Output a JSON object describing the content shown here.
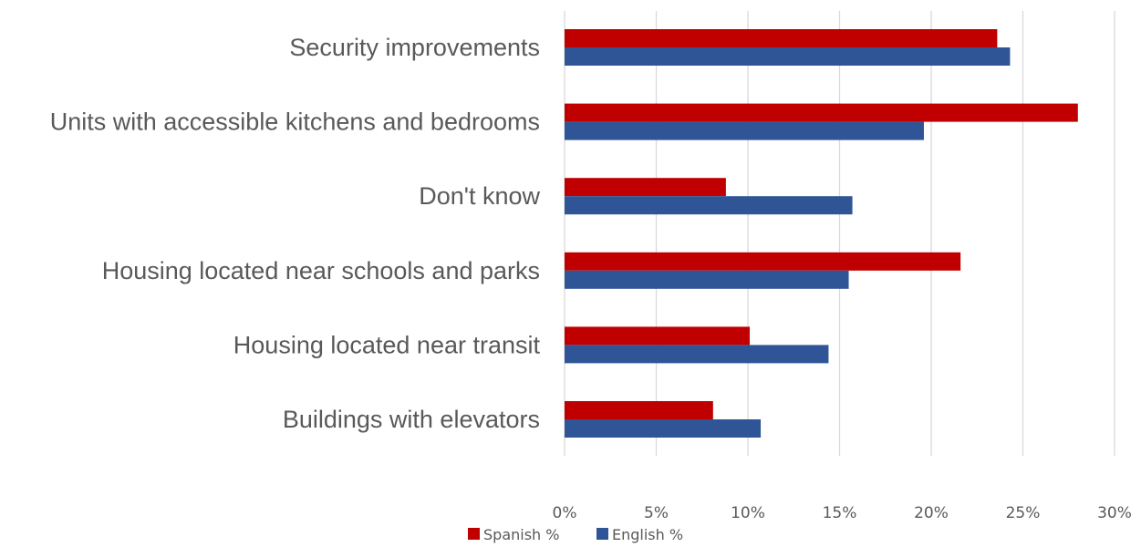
{
  "chart_data": {
    "type": "bar",
    "orientation": "horizontal",
    "categories": [
      "Security improvements",
      "Units with accessible kitchens and bedrooms",
      "Don't know",
      "Housing located near schools and parks",
      "Housing located near transit",
      "Buildings with elevators"
    ],
    "series": [
      {
        "name": "Spanish %",
        "color": "#c00000",
        "values": [
          23.6,
          28.0,
          8.8,
          21.6,
          10.1,
          8.1
        ]
      },
      {
        "name": "English %",
        "color": "#2f5597",
        "values": [
          24.3,
          19.6,
          15.7,
          15.5,
          14.4,
          10.7
        ]
      }
    ],
    "xlim": [
      0,
      30
    ],
    "x_ticks": [
      "0%",
      "5%",
      "10%",
      "15%",
      "20%",
      "25%",
      "30%"
    ],
    "grid": true,
    "legend_position": "bottom",
    "title": "",
    "xlabel": "",
    "ylabel": ""
  }
}
